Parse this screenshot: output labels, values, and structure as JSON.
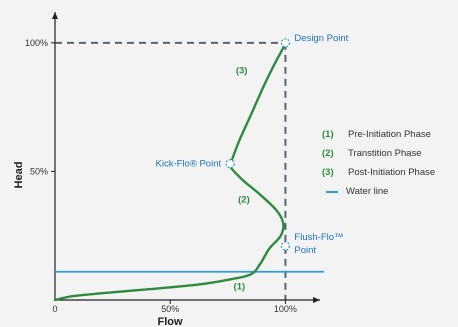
{
  "chart_data": {
    "type": "line",
    "xlabel": "Flow",
    "ylabel": "Head",
    "xlim": [
      0,
      115
    ],
    "ylim": [
      0,
      112
    ],
    "x_ticks": [
      {
        "value": 0,
        "label": "0"
      },
      {
        "value": 50,
        "label": "50%"
      },
      {
        "value": 100,
        "label": "100%"
      }
    ],
    "y_ticks": [
      {
        "value": 50,
        "label": "50%"
      },
      {
        "value": 100,
        "label": "100%"
      }
    ],
    "series": [
      {
        "curve": [
          [
            0,
            0
          ],
          [
            8,
            1.5
          ],
          [
            25,
            3
          ],
          [
            45,
            4.5
          ],
          [
            62,
            6
          ],
          [
            76,
            8
          ],
          [
            85,
            10
          ],
          [
            89,
            14
          ],
          [
            93,
            20
          ],
          [
            98,
            25
          ],
          [
            99,
            30
          ],
          [
            96,
            35
          ],
          [
            89,
            41
          ],
          [
            81,
            47
          ],
          [
            76,
            52
          ],
          [
            77,
            55
          ],
          [
            80,
            62
          ],
          [
            85,
            72
          ],
          [
            91,
            84
          ],
          [
            96,
            93
          ],
          [
            99,
            98
          ],
          [
            100,
            100
          ]
        ],
        "color": "#2e8b3e"
      },
      {
        "name": "Water line",
        "y": 11,
        "color": "#2e9ad8"
      }
    ],
    "reference_lines": {
      "x": 100,
      "y": 100,
      "style": "dashed",
      "color": "#5a6470"
    },
    "points": [
      {
        "x": 100,
        "y": 100,
        "label": "Design Point"
      },
      {
        "x": 76,
        "y": 53,
        "label": "Kick-Flo® Point"
      },
      {
        "x": 100,
        "y": 21,
        "label_lines": [
          "Flush-Flo™",
          "Point"
        ]
      }
    ],
    "phase_labels": [
      {
        "x": 81,
        "y": 88,
        "text": "(3)"
      },
      {
        "x": 82,
        "y": 38,
        "text": "(2)"
      },
      {
        "x": 80,
        "y": 4,
        "text": "(1)"
      }
    ],
    "legend": {
      "position": "right",
      "items": [
        {
          "key": "(1)",
          "label": "Pre-Initiation Phase"
        },
        {
          "key": "(2)",
          "label": "Transtition Phase"
        },
        {
          "key": "(3)",
          "label": "Post-Initiation Phase"
        },
        {
          "key": "",
          "label": "Water line"
        }
      ]
    }
  }
}
